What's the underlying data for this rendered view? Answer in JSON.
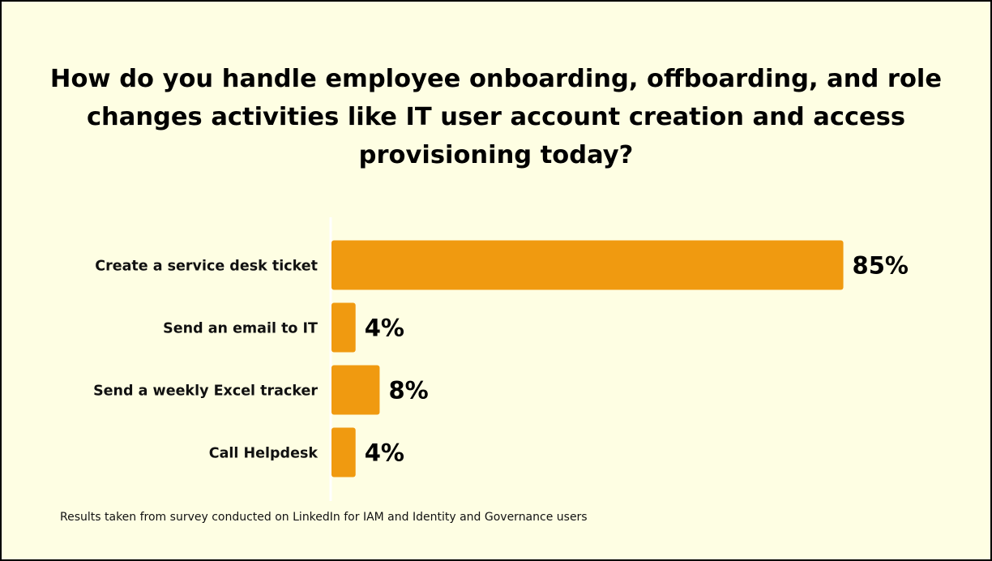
{
  "chart_data": {
    "type": "bar",
    "orientation": "horizontal",
    "title": "How do you handle employee onboarding, offboarding, and role changes activities like IT user account creation and access provisioning today?",
    "categories": [
      "Create a service desk ticket",
      "Send an email to IT",
      "Send a weekly Excel tracker",
      "Call Helpdesk"
    ],
    "values": [
      85,
      4,
      8,
      4
    ],
    "value_labels": [
      "85%",
      "4%",
      "8%",
      "4%"
    ],
    "unit": "%",
    "xlim": [
      0,
      100
    ],
    "grid": false,
    "legend": "none",
    "bar_color": "#f09a10",
    "axis_color": "#ffffff"
  },
  "footnote": "Results taken from survey conducted on LinkedIn for IAM and Identity and Governance users",
  "colors": {
    "background": "#fefee3",
    "border": "#000000",
    "text": "#000000"
  }
}
